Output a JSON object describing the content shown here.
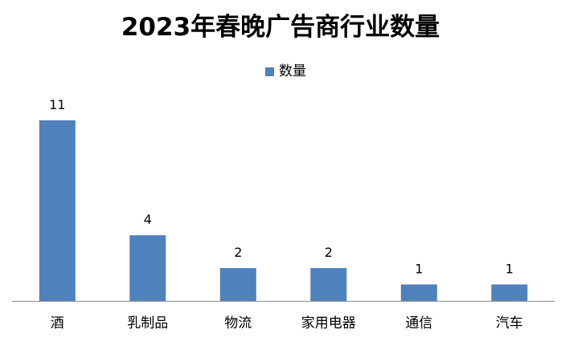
{
  "chart_data": {
    "type": "bar",
    "title": "2023年春晚广告商行业数量",
    "xlabel": "",
    "ylabel": "",
    "categories": [
      "酒",
      "乳制品",
      "物流",
      "家用电器",
      "通信",
      "汽车"
    ],
    "series": [
      {
        "name": "数量",
        "values": [
          11,
          4,
          2,
          2,
          1,
          1
        ],
        "color": "#4f81bd"
      }
    ],
    "ylim": [
      0,
      11
    ],
    "grid": false,
    "legend": "top-center",
    "data_labels": true
  }
}
